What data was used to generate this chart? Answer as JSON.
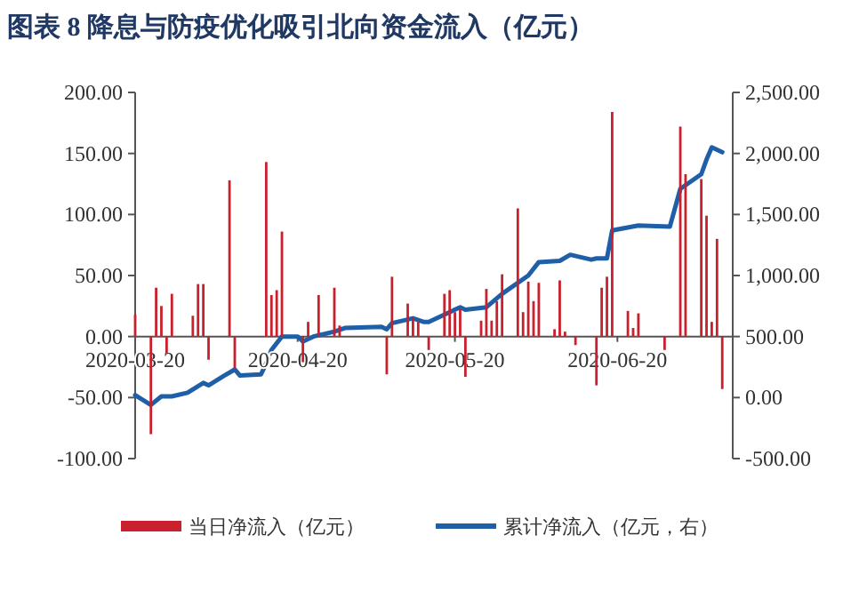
{
  "chart_data": {
    "type": "bar",
    "title": "图表 8 降息与防疫优化吸引北向资金流入（亿元）",
    "xlim": [
      "2020-03-20",
      "2020-07-12"
    ],
    "xticks": [
      "2020-03-20",
      "2020-04-20",
      "2020-05-20",
      "2020-06-20"
    ],
    "ylim": [
      -100,
      200
    ],
    "yticks": [
      {
        "value": -100,
        "label": "-100.00"
      },
      {
        "value": -50,
        "label": "-50.00"
      },
      {
        "value": 0,
        "label": "0.00"
      },
      {
        "value": 50,
        "label": "50.00"
      },
      {
        "value": 100,
        "label": "100.00"
      },
      {
        "value": 150,
        "label": "150.00"
      },
      {
        "value": 200,
        "label": "200.00"
      }
    ],
    "y2lim": [
      -500,
      2500
    ],
    "y2ticks": [
      {
        "value": -500,
        "label": "-500.00"
      },
      {
        "value": 0,
        "label": "0.00"
      },
      {
        "value": 500,
        "label": "500.00"
      },
      {
        "value": 1000,
        "label": "1,000.00"
      },
      {
        "value": 1500,
        "label": "1,500.00"
      },
      {
        "value": 2000,
        "label": "2,000.00"
      },
      {
        "value": 2500,
        "label": "2,500.00"
      }
    ],
    "grid": false,
    "legend": "bottom",
    "series": [
      {
        "name": "当日净流入（亿元）",
        "color": "#c8202c",
        "x": [
          "2020-03-20",
          "2020-03-23",
          "2020-03-24",
          "2020-03-25",
          "2020-03-26",
          "2020-03-27",
          "2020-03-31",
          "2020-04-01",
          "2020-04-02",
          "2020-04-03",
          "2020-04-07",
          "2020-04-08",
          "2020-04-14",
          "2020-04-15",
          "2020-04-16",
          "2020-04-17",
          "2020-04-21",
          "2020-04-22",
          "2020-04-24",
          "2020-04-27",
          "2020-04-28",
          "2020-05-07",
          "2020-05-08",
          "2020-05-11",
          "2020-05-12",
          "2020-05-13",
          "2020-05-15",
          "2020-05-18",
          "2020-05-19",
          "2020-05-20",
          "2020-05-21",
          "2020-05-22",
          "2020-05-25",
          "2020-05-26",
          "2020-05-27",
          "2020-05-28",
          "2020-05-29",
          "2020-06-01",
          "2020-06-02",
          "2020-06-03",
          "2020-06-04",
          "2020-06-05",
          "2020-06-08",
          "2020-06-09",
          "2020-06-10",
          "2020-06-12",
          "2020-06-16",
          "2020-06-17",
          "2020-06-18",
          "2020-06-19",
          "2020-06-22",
          "2020-06-23",
          "2020-06-24",
          "2020-06-29",
          "2020-07-02",
          "2020-07-03",
          "2020-07-06",
          "2020-07-07",
          "2020-07-08",
          "2020-07-09",
          "2020-07-10"
        ],
        "values": [
          18,
          -80,
          40,
          25,
          -14,
          35,
          17,
          43,
          43,
          -19,
          128,
          -26,
          143,
          34,
          38,
          86,
          -21,
          12,
          34,
          40,
          9,
          -31,
          49,
          27,
          16,
          12,
          -11,
          35,
          38,
          20,
          23,
          -33,
          13,
          39,
          13,
          29,
          51,
          105,
          20,
          45,
          29,
          44,
          6,
          46,
          4,
          -7,
          -40,
          40,
          49,
          184,
          21,
          7,
          19,
          -11,
          172,
          133,
          129,
          99,
          12,
          80,
          -43
        ]
      },
      {
        "name": "累计净流入（亿元，右）",
        "type": "line",
        "axis": "y2",
        "color": "#1f5fa8",
        "x": [
          "2020-03-20",
          "2020-03-23",
          "2020-03-25",
          "2020-03-27",
          "2020-03-30",
          "2020-04-02",
          "2020-04-03",
          "2020-04-06",
          "2020-04-08",
          "2020-04-09",
          "2020-04-13",
          "2020-04-14",
          "2020-04-15",
          "2020-04-17",
          "2020-04-20",
          "2020-04-21",
          "2020-04-23",
          "2020-04-27",
          "2020-04-29",
          "2020-05-06",
          "2020-05-07",
          "2020-05-08",
          "2020-05-12",
          "2020-05-14",
          "2020-05-15",
          "2020-05-18",
          "2020-05-21",
          "2020-05-22",
          "2020-05-26",
          "2020-05-29",
          "2020-06-03",
          "2020-06-05",
          "2020-06-09",
          "2020-06-11",
          "2020-06-15",
          "2020-06-16",
          "2020-06-18",
          "2020-06-19",
          "2020-06-24",
          "2020-06-30",
          "2020-07-02",
          "2020-07-06",
          "2020-07-07",
          "2020-07-08",
          "2020-07-10"
        ],
        "values": [
          20,
          -60,
          10,
          10,
          40,
          120,
          100,
          180,
          230,
          180,
          190,
          280,
          390,
          500,
          500,
          460,
          500,
          540,
          570,
          580,
          560,
          610,
          650,
          620,
          620,
          680,
          740,
          720,
          740,
          850,
          1000,
          1110,
          1120,
          1170,
          1130,
          1140,
          1140,
          1370,
          1410,
          1400,
          1710,
          1830,
          1950,
          2050,
          2010
        ]
      }
    ]
  }
}
